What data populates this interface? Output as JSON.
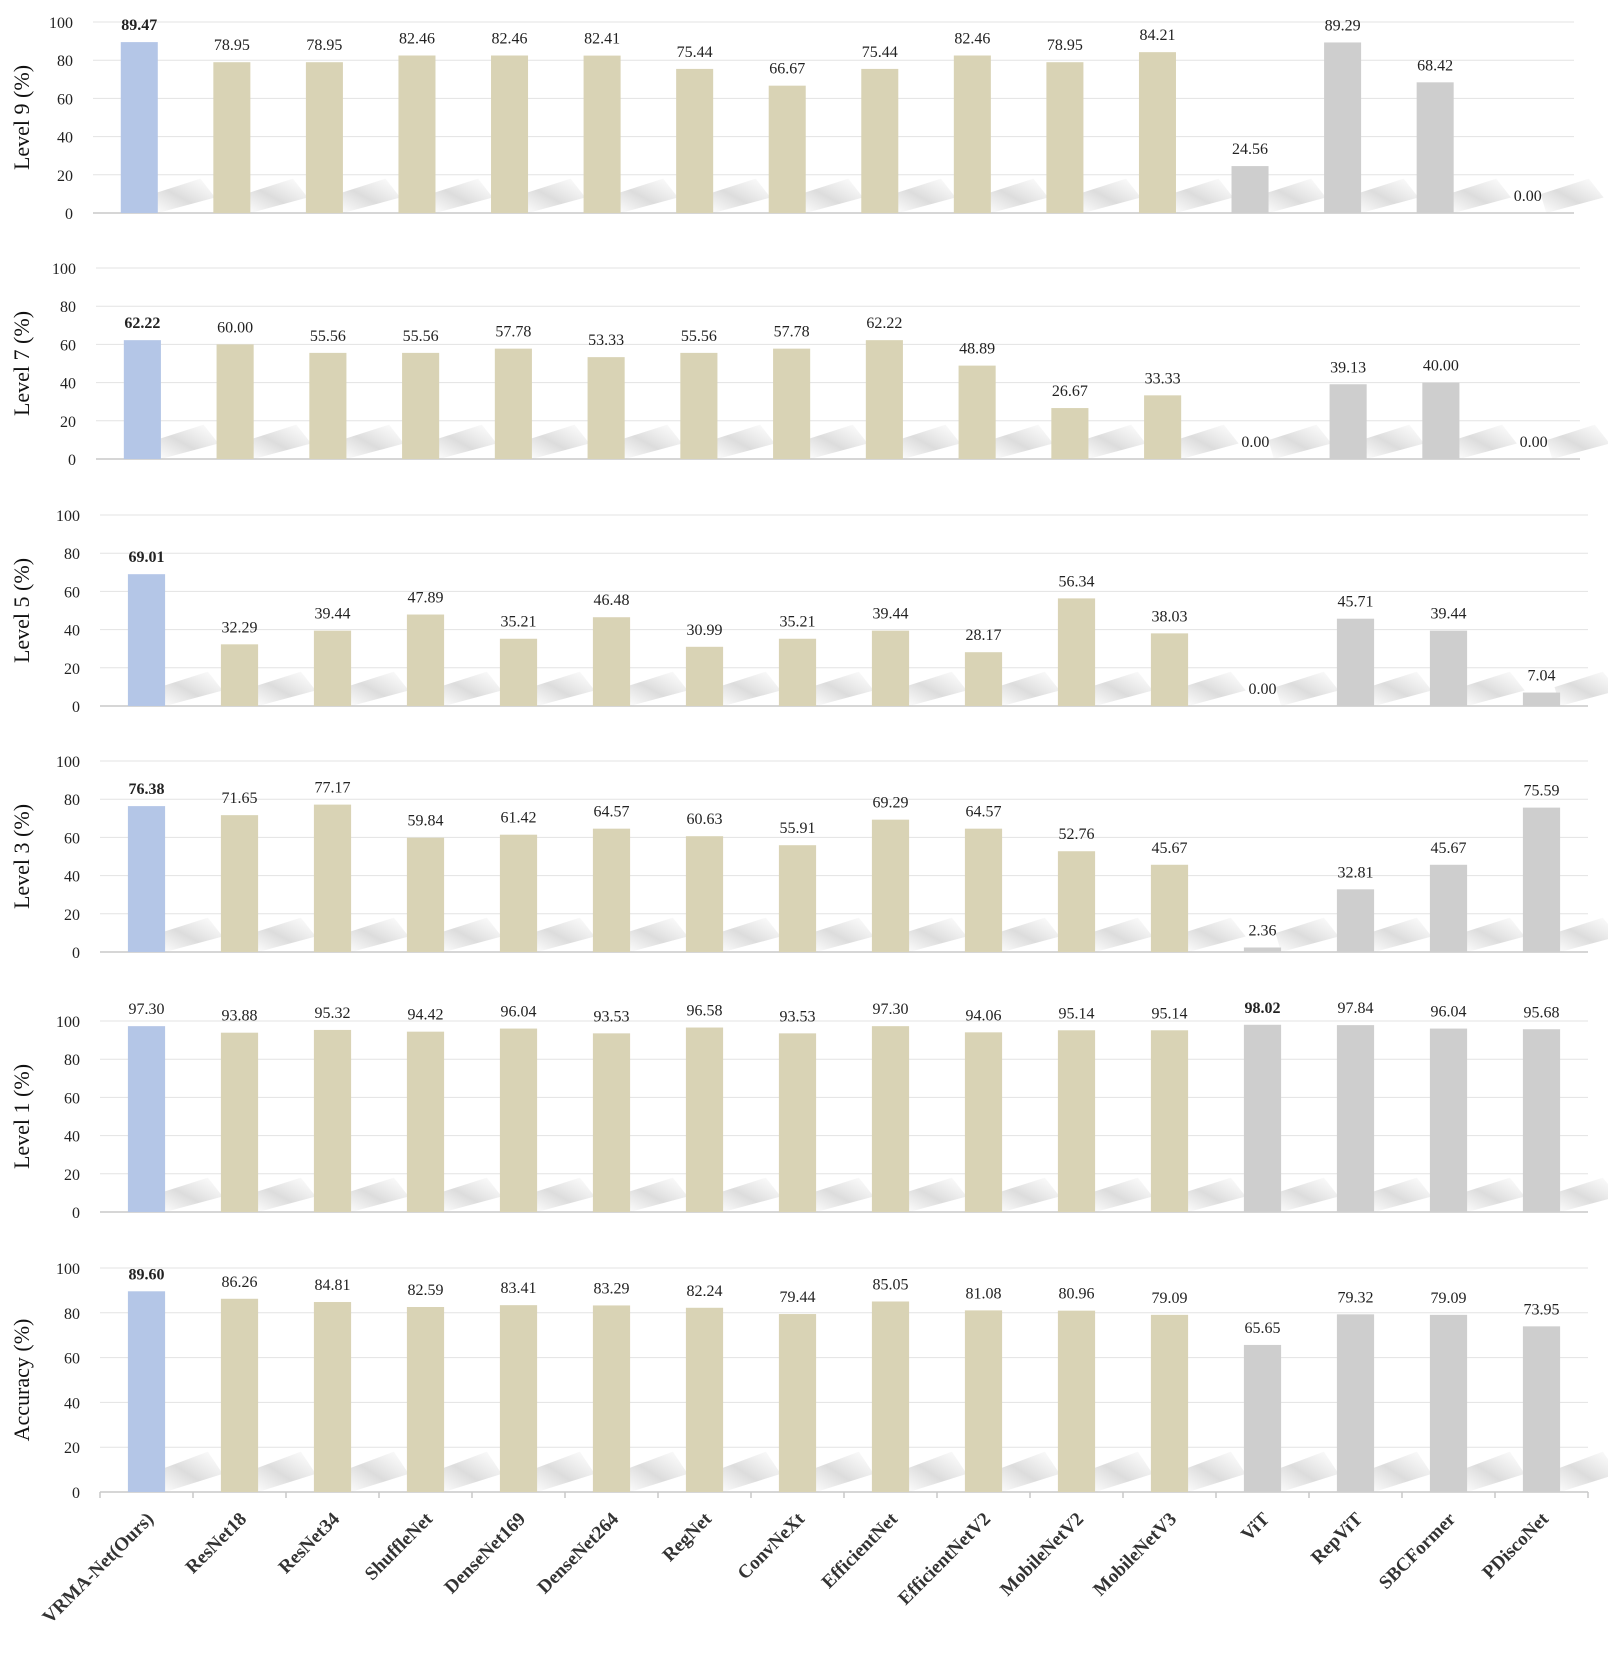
{
  "chart_data": [
    {
      "type": "bar",
      "ylabel": "Level 9 (%)",
      "ylim": [
        0,
        100
      ],
      "yticks": [
        0,
        20,
        40,
        60,
        80,
        100
      ],
      "categories": [
        "VRMA-Net(Ours)",
        "ResNet18",
        "ResNet34",
        "ShuffleNet",
        "DenseNet169",
        "DenseNet264",
        "RegNet",
        "ConvNeXt",
        "EfficientNet",
        "EfficientNetV2",
        "MobileNetV2",
        "MobileNetV3",
        "ViT",
        "RepViT",
        "SBCFormer",
        "PDiscoNet"
      ],
      "values": [
        89.47,
        78.95,
        78.95,
        82.46,
        82.46,
        82.41,
        75.44,
        66.67,
        75.44,
        82.46,
        78.95,
        84.21,
        24.56,
        89.29,
        68.42,
        0.0
      ],
      "labels": [
        "89.47",
        "78.95",
        "78.95",
        "82.46",
        "82.46",
        "82.41",
        "75.44",
        "66.67",
        "75.44",
        "82.46",
        "78.95",
        "84.21",
        "24.56",
        "89.29",
        "68.42",
        "0.00"
      ],
      "bold_index": 0
    },
    {
      "type": "bar",
      "ylabel": "Level 7 (%)",
      "ylim": [
        0,
        100
      ],
      "yticks": [
        0,
        20,
        40,
        60,
        80,
        100
      ],
      "categories": [
        "VRMA-Net(Ours)",
        "ResNet18",
        "ResNet34",
        "ShuffleNet",
        "DenseNet169",
        "DenseNet264",
        "RegNet",
        "ConvNeXt",
        "EfficientNet",
        "EfficientNetV2",
        "MobileNetV2",
        "MobileNetV3",
        "ViT",
        "RepViT",
        "SBCFormer",
        "PDiscoNet"
      ],
      "values": [
        62.22,
        60.0,
        55.56,
        55.56,
        57.78,
        53.33,
        55.56,
        57.78,
        62.22,
        48.89,
        26.67,
        33.33,
        0.0,
        39.13,
        40.0,
        0.0
      ],
      "labels": [
        "62.22",
        "60.00",
        "55.56",
        "55.56",
        "57.78",
        "53.33",
        "55.56",
        "57.78",
        "62.22",
        "48.89",
        "26.67",
        "33.33",
        "0.00",
        "39.13",
        "40.00",
        "0.00"
      ],
      "bold_index": 0
    },
    {
      "type": "bar",
      "ylabel": "Level 5 (%)",
      "ylim": [
        0,
        100
      ],
      "yticks": [
        0,
        20,
        40,
        60,
        80,
        100
      ],
      "categories": [
        "VRMA-Net(Ours)",
        "ResNet18",
        "ResNet34",
        "ShuffleNet",
        "DenseNet169",
        "DenseNet264",
        "RegNet",
        "ConvNeXt",
        "EfficientNet",
        "EfficientNetV2",
        "MobileNetV2",
        "MobileNetV3",
        "ViT",
        "RepViT",
        "SBCFormer",
        "PDiscoNet"
      ],
      "values": [
        69.01,
        32.29,
        39.44,
        47.89,
        35.21,
        46.48,
        30.99,
        35.21,
        39.44,
        28.17,
        56.34,
        38.03,
        0.0,
        45.71,
        39.44,
        7.04
      ],
      "labels": [
        "69.01",
        "32.29",
        "39.44",
        "47.89",
        "35.21",
        "46.48",
        "30.99",
        "35.21",
        "39.44",
        "28.17",
        "56.34",
        "38.03",
        "0.00",
        "45.71",
        "39.44",
        "7.04"
      ],
      "bold_index": 0
    },
    {
      "type": "bar",
      "ylabel": "Level 3 (%)",
      "ylim": [
        0,
        100
      ],
      "yticks": [
        0,
        20,
        40,
        60,
        80,
        100
      ],
      "categories": [
        "VRMA-Net(Ours)",
        "ResNet18",
        "ResNet34",
        "ShuffleNet",
        "DenseNet169",
        "DenseNet264",
        "RegNet",
        "ConvNeXt",
        "EfficientNet",
        "EfficientNetV2",
        "MobileNetV2",
        "MobileNetV3",
        "ViT",
        "RepViT",
        "SBCFormer",
        "PDiscoNet"
      ],
      "values": [
        76.38,
        71.65,
        77.17,
        59.84,
        61.42,
        64.57,
        60.63,
        55.91,
        69.29,
        64.57,
        52.76,
        45.67,
        2.36,
        32.81,
        45.67,
        75.59
      ],
      "labels": [
        "76.38",
        "71.65",
        "77.17",
        "59.84",
        "61.42",
        "64.57",
        "60.63",
        "55.91",
        "69.29",
        "64.57",
        "52.76",
        "45.67",
        "2.36",
        "32.81",
        "45.67",
        "75.59"
      ],
      "bold_index": 0
    },
    {
      "type": "bar",
      "ylabel": "Level 1 (%)",
      "ylim": [
        0,
        100
      ],
      "yticks": [
        0,
        20,
        40,
        60,
        80,
        100
      ],
      "categories": [
        "VRMA-Net(Ours)",
        "ResNet18",
        "ResNet34",
        "ShuffleNet",
        "DenseNet169",
        "DenseNet264",
        "RegNet",
        "ConvNeXt",
        "EfficientNet",
        "EfficientNetV2",
        "MobileNetV2",
        "MobileNetV3",
        "ViT",
        "RepViT",
        "SBCFormer",
        "PDiscoNet"
      ],
      "values": [
        97.3,
        93.88,
        95.32,
        94.42,
        96.04,
        93.53,
        96.58,
        93.53,
        97.3,
        94.06,
        95.14,
        95.14,
        98.02,
        97.84,
        96.04,
        95.68
      ],
      "labels": [
        "97.30",
        "93.88",
        "95.32",
        "94.42",
        "96.04",
        "93.53",
        "96.58",
        "93.53",
        "97.30",
        "94.06",
        "95.14",
        "95.14",
        "98.02",
        "97.84",
        "96.04",
        "95.68"
      ],
      "bold_index": 12
    },
    {
      "type": "bar",
      "ylabel": "Accuracy (%)",
      "ylim": [
        0,
        100
      ],
      "yticks": [
        0,
        20,
        40,
        60,
        80,
        100
      ],
      "categories": [
        "VRMA-Net(Ours)",
        "ResNet18",
        "ResNet34",
        "ShuffleNet",
        "DenseNet169",
        "DenseNet264",
        "RegNet",
        "ConvNeXt",
        "EfficientNet",
        "EfficientNetV2",
        "MobileNetV2",
        "MobileNetV3",
        "ViT",
        "RepViT",
        "SBCFormer",
        "PDiscoNet"
      ],
      "values": [
        89.6,
        86.26,
        84.81,
        82.59,
        83.41,
        83.29,
        82.24,
        79.44,
        85.05,
        81.08,
        80.96,
        79.09,
        65.65,
        79.32,
        79.09,
        73.95
      ],
      "labels": [
        "89.60",
        "86.26",
        "84.81",
        "82.59",
        "83.41",
        "83.29",
        "82.24",
        "79.44",
        "85.05",
        "81.08",
        "80.96",
        "79.09",
        "65.65",
        "79.32",
        "79.09",
        "73.95"
      ],
      "bold_index": 0
    }
  ],
  "category_labels": [
    "VRMA-Net(Ours)",
    "ResNet18",
    "ResNet34",
    "ShuffleNet",
    "DenseNet169",
    "DenseNet264",
    "RegNet",
    "ConvNeXt",
    "EfficientNet",
    "EfficientNetV2",
    "MobileNetV2",
    "MobileNetV3",
    "ViT",
    "RepViT",
    "SBCFormer",
    "PDiscoNet"
  ],
  "bar_colors": [
    "#b4c6e7",
    "#d9d3b5",
    "#d9d3b5",
    "#d9d3b5",
    "#d9d3b5",
    "#d9d3b5",
    "#d9d3b5",
    "#d9d3b5",
    "#d9d3b5",
    "#d9d3b5",
    "#d9d3b5",
    "#d9d3b5",
    "#cecece",
    "#cecece",
    "#cecece",
    "#cecece"
  ],
  "colors": {
    "ours": "#b4c6e7",
    "cnn": "#d9d3b5",
    "transformer": "#cecece",
    "grid": "#e3e3e3",
    "axis": "#c8c8c8",
    "shadow": "#d9d9d9"
  },
  "legend": "none",
  "grid": true
}
